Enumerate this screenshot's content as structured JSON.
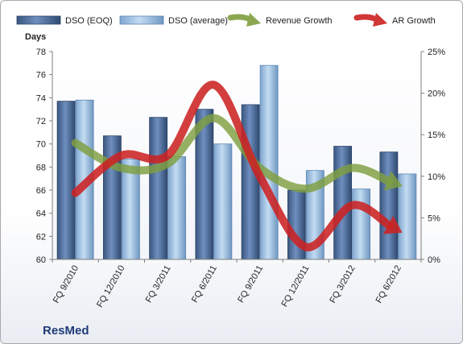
{
  "chart_data": {
    "type": "bar",
    "categories": [
      "FQ 9/2010",
      "FQ 12/2010",
      "FQ 3/2011",
      "FQ 6/2011",
      "FQ 9/2011",
      "FQ 12/2011",
      "FQ 3/2012",
      "FQ 6/2012"
    ],
    "series": [
      {
        "name": "DSO (EOQ)",
        "type": "bar",
        "axis": "left",
        "color": "#4f6d9b",
        "values": [
          73.7,
          70.7,
          72.3,
          73.0,
          73.4,
          66.0,
          69.8,
          69.3
        ]
      },
      {
        "name": "DSO (average)",
        "type": "bar",
        "axis": "left",
        "color": "#9dc3e6",
        "values": [
          73.8,
          68.7,
          68.9,
          70.0,
          76.8,
          67.7,
          66.1,
          67.4
        ]
      },
      {
        "name": "Revenue Growth",
        "type": "line",
        "axis": "right",
        "color": "#7f9f3f",
        "values": [
          14.0,
          11.0,
          11.5,
          17.0,
          11.0,
          8.5,
          11.0,
          9.0
        ]
      },
      {
        "name": "AR Growth",
        "type": "line",
        "axis": "right",
        "color": "#cc2222",
        "values": [
          8.0,
          12.5,
          12.5,
          21.0,
          10.0,
          1.5,
          6.5,
          3.5
        ]
      }
    ],
    "ylabel": "Days",
    "ylim": [
      60,
      78
    ],
    "yticks": [
      "60",
      "62",
      "64",
      "66",
      "68",
      "70",
      "72",
      "74",
      "76",
      "78"
    ],
    "y2lim": [
      0,
      25
    ],
    "y2ticks": [
      "0%",
      "5%",
      "10%",
      "15%",
      "20%",
      "25%"
    ],
    "legend_position": "top",
    "grid": false
  },
  "footer": {
    "brand": "ResMed"
  }
}
